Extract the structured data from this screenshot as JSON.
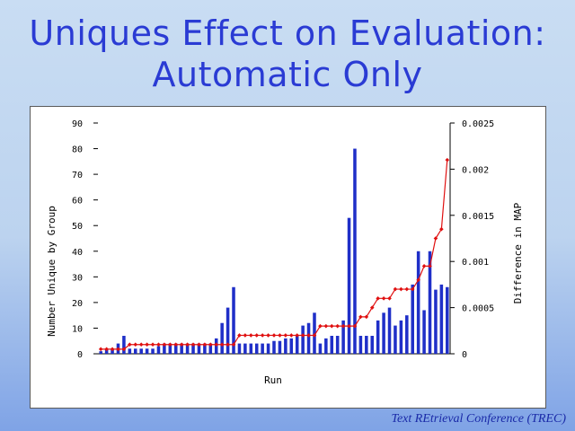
{
  "slide": {
    "title_line1": "Uniques Effect on Evaluation:",
    "title_line2": "Automatic Only",
    "footer": "Text REtrieval Conference (TREC)"
  },
  "colors": {
    "title": "#2a3bd4",
    "bars": "#1f2fc8",
    "line": "#e01010",
    "footer": "#1a2aa8"
  },
  "chart_data": {
    "type": "bar+line",
    "xlabel": "Run",
    "ylabel": "Number Unique by Group",
    "y2label": "Difference in MAP",
    "ylim": [
      0,
      90
    ],
    "y2lim": [
      0,
      0.0025
    ],
    "yticks": [
      "0",
      "10",
      "20",
      "30",
      "40",
      "50",
      "60",
      "70",
      "80",
      "90"
    ],
    "y2ticks": [
      "0",
      "0.0005",
      "0.001",
      "0.0015",
      "0.002",
      "0.0025"
    ],
    "grid": false,
    "series": [
      {
        "kind": "bar",
        "axis": "left",
        "values": [
          1,
          2,
          2,
          4,
          7,
          2,
          2,
          2,
          2,
          2,
          3,
          4,
          4,
          4,
          4,
          4,
          4,
          4,
          4,
          4,
          6,
          12,
          18,
          26,
          4,
          4,
          4,
          4,
          4,
          4,
          5,
          5,
          6,
          6,
          7,
          11,
          12,
          16,
          4,
          6,
          7,
          7,
          13,
          53,
          80,
          7,
          7,
          7,
          13,
          16,
          18,
          11,
          13,
          15,
          27,
          40,
          17,
          40,
          25,
          27,
          26
        ]
      },
      {
        "kind": "line",
        "axis": "right",
        "values": [
          5e-05,
          5e-05,
          5e-05,
          5e-05,
          5e-05,
          0.0001,
          0.0001,
          0.0001,
          0.0001,
          0.0001,
          0.0001,
          0.0001,
          0.0001,
          0.0001,
          0.0001,
          0.0001,
          0.0001,
          0.0001,
          0.0001,
          0.0001,
          0.0001,
          0.0001,
          0.0001,
          0.0001,
          0.0002,
          0.0002,
          0.0002,
          0.0002,
          0.0002,
          0.0002,
          0.0002,
          0.0002,
          0.0002,
          0.0002,
          0.0002,
          0.0002,
          0.0002,
          0.0002,
          0.0003,
          0.0003,
          0.0003,
          0.0003,
          0.0003,
          0.0003,
          0.0003,
          0.0004,
          0.0004,
          0.0005,
          0.0006,
          0.0006,
          0.0006,
          0.0007,
          0.0007,
          0.0007,
          0.0007,
          0.0008,
          0.00095,
          0.00095,
          0.00125,
          0.00135,
          0.0021
        ]
      }
    ]
  }
}
